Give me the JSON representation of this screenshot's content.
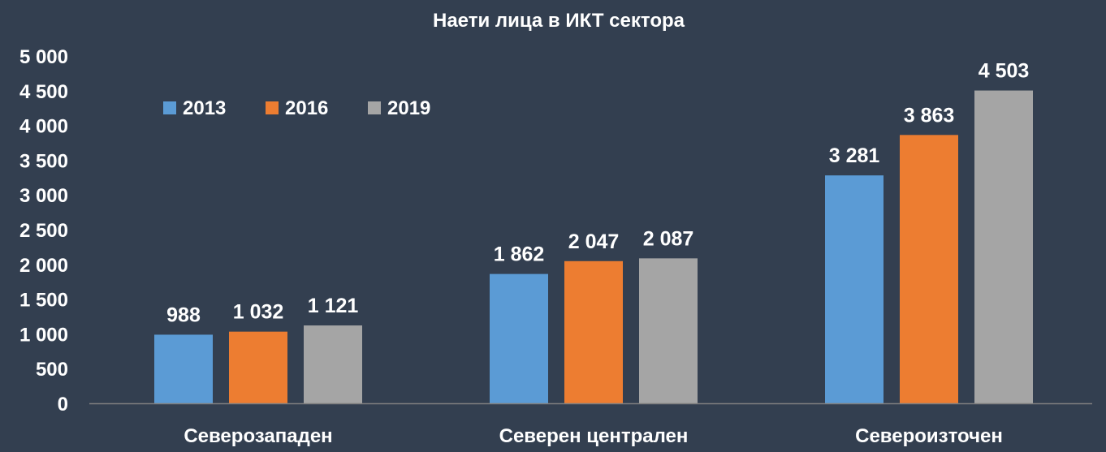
{
  "chart_data": {
    "type": "bar",
    "title": "Наети лица в ИКТ сектора",
    "xlabel": "",
    "ylabel": "",
    "categories": [
      "Северозападен",
      "Северен централен",
      "Североизточен"
    ],
    "series": [
      {
        "name": "2013",
        "color": "#5B9BD5",
        "values": [
          988,
          1862,
          3281
        ],
        "labels": [
          "988",
          "1 862",
          "3 281"
        ]
      },
      {
        "name": "2016",
        "color": "#ED7D31",
        "values": [
          1032,
          2047,
          3863
        ],
        "labels": [
          "1 032",
          "2 047",
          "3 863"
        ]
      },
      {
        "name": "2019",
        "color": "#A5A5A5",
        "values": [
          1121,
          2087,
          4503
        ],
        "labels": [
          "1 121",
          "2 087",
          "4 503"
        ]
      }
    ],
    "ylim": [
      0,
      5000
    ],
    "yticks": [
      0,
      500,
      1000,
      1500,
      2000,
      2500,
      3000,
      3500,
      4000,
      4500,
      5000
    ],
    "ytick_labels": [
      "0",
      "500",
      "1 000",
      "1 500",
      "2 000",
      "2 500",
      "3 000",
      "3 500",
      "4 000",
      "4 500",
      "5 000"
    ],
    "grid": false,
    "legend_position": "top-left"
  },
  "colors": {
    "background": "#333F50",
    "axis": "#7F7F7F",
    "text": "#FFFFFF"
  }
}
